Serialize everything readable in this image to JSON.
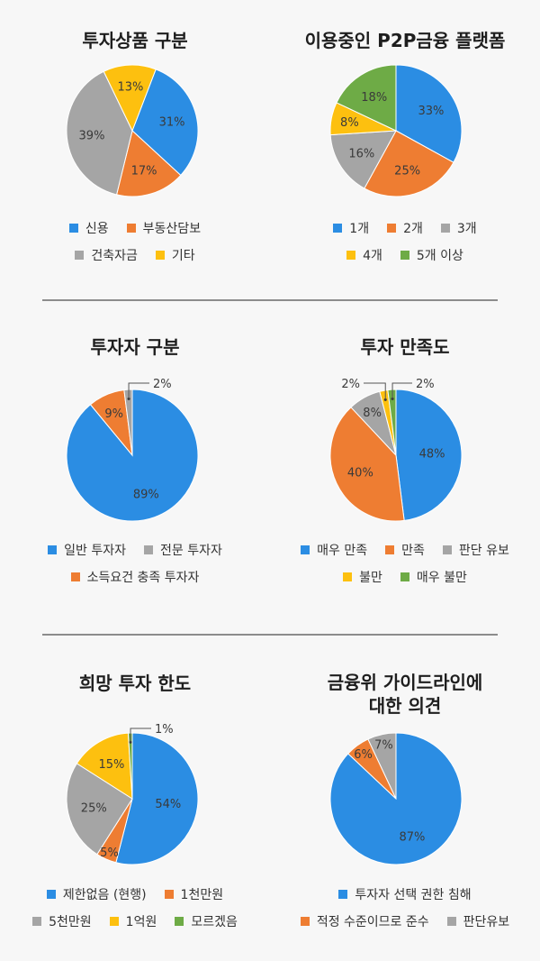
{
  "colors": {
    "blue": "#2b8de3",
    "orange": "#ee7d32",
    "gray": "#a5a5a5",
    "yellow": "#fdc00f",
    "green": "#6eab46"
  },
  "chart_data": [
    {
      "type": "pie",
      "title": "투자상품 구분",
      "categories": [
        "신용",
        "부동산담보",
        "건축자금",
        "기타"
      ],
      "values": [
        31,
        17,
        39,
        13
      ],
      "labels": [
        "31%",
        "17%",
        "39%",
        "13%"
      ],
      "colors": [
        "#2b8de3",
        "#ee7d32",
        "#a5a5a5",
        "#fdc00f"
      ],
      "legend_rows": [
        [
          "신용",
          "부동산담보"
        ],
        [
          "건축자금",
          "기타"
        ]
      ],
      "start_angle_deg": 21
    },
    {
      "type": "pie",
      "title": "이용중인 P2P금융 플랫폼",
      "categories": [
        "1개",
        "2개",
        "3개",
        "4개",
        "5개 이상"
      ],
      "values": [
        33,
        25,
        16,
        8,
        18
      ],
      "labels": [
        "33%",
        "25%",
        "16%",
        "8%",
        "18%"
      ],
      "colors": [
        "#2b8de3",
        "#ee7d32",
        "#a5a5a5",
        "#fdc00f",
        "#6eab46"
      ],
      "legend_rows": [
        [
          "1개",
          "2개",
          "3개"
        ],
        [
          "4개",
          "5개 이상"
        ]
      ],
      "start_angle_deg": 0
    },
    {
      "type": "pie",
      "title": "투자자 구분",
      "categories": [
        "일반 투자자",
        "소득요건 충족 투자자",
        "전문 투자자"
      ],
      "values": [
        89,
        9,
        2
      ],
      "labels": [
        "89%",
        "9%",
        "2%"
      ],
      "colors": [
        "#2b8de3",
        "#ee7d32",
        "#a5a5a5"
      ],
      "legend_rows": [
        [
          "일반 투자자",
          "전문 투자자"
        ],
        [
          "소득요건 충족 투자자"
        ]
      ],
      "start_angle_deg": 0
    },
    {
      "type": "pie",
      "title": "투자 만족도",
      "categories": [
        "매우 만족",
        "만족",
        "판단 유보",
        "불만",
        "매우 불만"
      ],
      "values": [
        48,
        40,
        8,
        2,
        2
      ],
      "labels": [
        "48%",
        "40%",
        "8%",
        "2%",
        "2%"
      ],
      "colors": [
        "#2b8de3",
        "#ee7d32",
        "#a5a5a5",
        "#fdc00f",
        "#6eab46"
      ],
      "legend_rows": [
        [
          "매우 만족",
          "만족",
          "판단 유보"
        ],
        [
          "불만",
          "매우 불만"
        ]
      ],
      "start_angle_deg": 0
    },
    {
      "type": "pie",
      "title": "희망 투자 한도",
      "categories": [
        "제한없음 (현행)",
        "1천만원",
        "5천만원",
        "1억원",
        "모르겠음"
      ],
      "values": [
        54,
        5,
        25,
        15,
        1
      ],
      "labels": [
        "54%",
        "5%",
        "25%",
        "15%",
        "1%"
      ],
      "colors": [
        "#2b8de3",
        "#ee7d32",
        "#a5a5a5",
        "#fdc00f",
        "#6eab46"
      ],
      "legend_rows": [
        [
          "제한없음 (현행)",
          "1천만원"
        ],
        [
          "5천만원",
          "1억원",
          "모르겠음"
        ]
      ],
      "start_angle_deg": 0
    },
    {
      "type": "pie",
      "title": "금융위 가이드라인에 대한 의견",
      "title_lines": [
        "금융위 가이드라인에",
        "대한 의견"
      ],
      "categories": [
        "투자자 선택 권한 침해",
        "적정 수준이므로 준수",
        "판단유보"
      ],
      "values": [
        87,
        6,
        7
      ],
      "labels": [
        "87%",
        "6%",
        "7%"
      ],
      "colors": [
        "#2b8de3",
        "#ee7d32",
        "#a5a5a5"
      ],
      "legend_rows": [
        [
          "투자자 선택 권한 침해"
        ],
        [
          "적정 수준이므로 준수",
          "판단유보"
        ]
      ],
      "start_angle_deg": 0
    }
  ],
  "titles": {
    "c0": "투자상품 구분",
    "c1": "이용중인 P2P금융 플랫폼",
    "c2": "투자자 구분",
    "c3": "투자 만족도",
    "c4": "희망 투자 한도",
    "c5_line1": "금융위 가이드라인에",
    "c5_line2": "대한 의견"
  }
}
